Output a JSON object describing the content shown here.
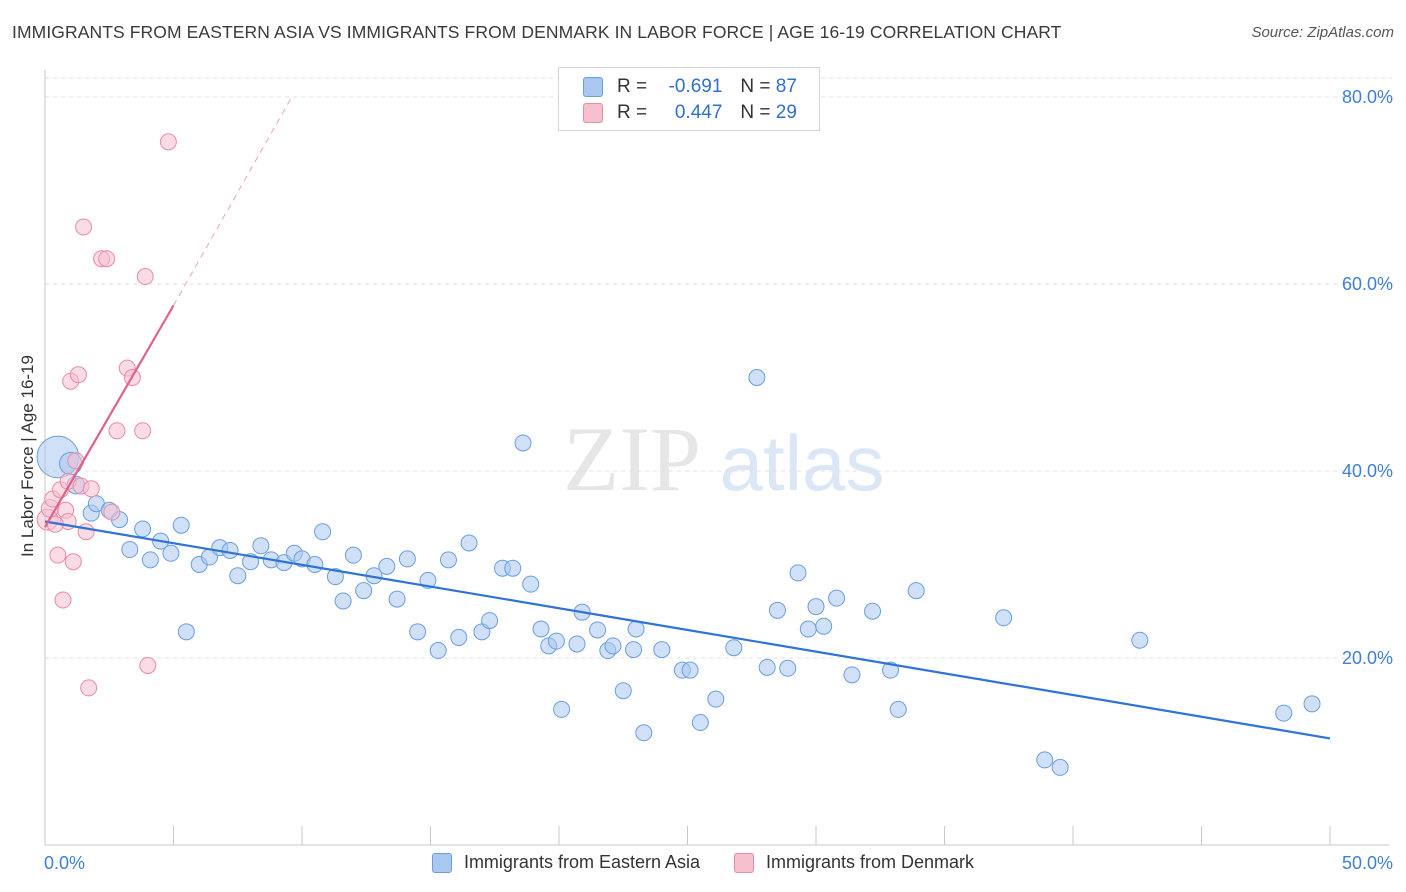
{
  "title": "IMMIGRANTS FROM EASTERN ASIA VS IMMIGRANTS FROM DENMARK IN LABOR FORCE | AGE 16-19 CORRELATION CHART",
  "source": "Source: ZipAtlas.com",
  "watermark": {
    "zip": "ZIP",
    "atlas": "atlas"
  },
  "legend": {
    "r_label": "R =",
    "n_label": "N =",
    "rows": [
      {
        "r": "-0.691",
        "n": "87",
        "color": "#a9c8f0",
        "border": "#6a9ee0"
      },
      {
        "r": "0.447",
        "n": "29",
        "color": "#f7c0cf",
        "border": "#e98aa6"
      }
    ]
  },
  "chart_data": {
    "type": "scatter",
    "xlabel": "",
    "ylabel": "In Labor Force | Age 16-19",
    "xlim": [
      0,
      50
    ],
    "ylim": [
      0,
      85
    ],
    "x_tick_labels": [
      "0.0%",
      "50.0%"
    ],
    "y_ticks": [
      20,
      40,
      60,
      80
    ],
    "y_tick_labels": [
      "20.0%",
      "40.0%",
      "60.0%",
      "80.0%"
    ],
    "grid": true,
    "legend_position": "bottom",
    "series": [
      {
        "name": "Immigrants from Eastern Asia",
        "color": "#a9c8f0",
        "stroke": "#6a9ee0",
        "trend_color": "#2f73d6",
        "trend": {
          "x0": 0.0,
          "y0": 34.6,
          "x1": 50.0,
          "y1": 11.4
        },
        "points": [
          [
            0.5,
            41.5,
            2.6
          ],
          [
            1.0,
            40.8,
            1.4
          ],
          [
            1.2,
            38.5,
            1.1
          ],
          [
            1.8,
            35.5,
            1.0
          ],
          [
            2.0,
            36.5,
            1.0
          ],
          [
            2.5,
            35.8,
            1.0
          ],
          [
            2.9,
            34.8,
            1.0
          ],
          [
            3.3,
            31.6,
            1.0
          ],
          [
            3.8,
            33.8,
            1.0
          ],
          [
            4.1,
            30.5,
            1.0
          ],
          [
            4.5,
            32.5,
            1.0
          ],
          [
            4.9,
            31.2,
            1.0
          ],
          [
            5.3,
            34.2,
            1.0
          ],
          [
            5.5,
            22.8,
            1.0
          ],
          [
            6.0,
            30.0,
            1.0
          ],
          [
            6.4,
            30.8,
            1.0
          ],
          [
            6.8,
            31.8,
            1.0
          ],
          [
            7.2,
            31.5,
            1.0
          ],
          [
            7.5,
            28.8,
            1.0
          ],
          [
            8.0,
            30.3,
            1.0
          ],
          [
            8.4,
            32.0,
            1.0
          ],
          [
            8.8,
            30.5,
            1.0
          ],
          [
            9.3,
            30.2,
            1.0
          ],
          [
            9.7,
            31.2,
            1.0
          ],
          [
            10.0,
            30.6,
            1.0
          ],
          [
            10.5,
            30.0,
            1.0
          ],
          [
            10.8,
            33.5,
            1.0
          ],
          [
            11.3,
            28.7,
            1.0
          ],
          [
            11.6,
            26.1,
            1.0
          ],
          [
            12.0,
            31.0,
            1.0
          ],
          [
            12.4,
            27.2,
            1.0
          ],
          [
            12.8,
            28.8,
            1.0
          ],
          [
            13.3,
            29.8,
            1.0
          ],
          [
            13.7,
            26.3,
            1.0
          ],
          [
            14.1,
            30.6,
            1.0
          ],
          [
            14.5,
            22.8,
            1.0
          ],
          [
            14.9,
            28.3,
            1.0
          ],
          [
            15.3,
            20.8,
            1.0
          ],
          [
            15.7,
            30.5,
            1.0
          ],
          [
            16.1,
            22.2,
            1.0
          ],
          [
            16.5,
            32.3,
            1.0
          ],
          [
            17.0,
            22.8,
            1.0
          ],
          [
            17.3,
            24.0,
            1.0
          ],
          [
            17.8,
            29.6,
            1.0
          ],
          [
            18.2,
            29.6,
            1.0
          ],
          [
            18.6,
            43.0,
            1.0
          ],
          [
            18.9,
            27.9,
            1.0
          ],
          [
            19.3,
            23.1,
            1.0
          ],
          [
            19.6,
            21.3,
            1.0
          ],
          [
            19.9,
            21.8,
            1.0
          ],
          [
            20.1,
            14.5,
            1.0
          ],
          [
            20.7,
            21.5,
            1.0
          ],
          [
            20.9,
            24.9,
            1.0
          ],
          [
            21.5,
            23.0,
            1.0
          ],
          [
            21.9,
            20.8,
            1.0
          ],
          [
            22.1,
            21.3,
            1.0
          ],
          [
            22.5,
            16.5,
            1.0
          ],
          [
            22.9,
            20.9,
            1.0
          ],
          [
            23.0,
            23.1,
            1.0
          ],
          [
            23.3,
            12.0,
            1.0
          ],
          [
            24.0,
            20.9,
            1.0
          ],
          [
            24.8,
            18.7,
            1.0
          ],
          [
            25.1,
            18.7,
            1.0
          ],
          [
            25.5,
            13.1,
            1.0
          ],
          [
            26.1,
            15.6,
            1.0
          ],
          [
            26.8,
            21.1,
            1.0
          ],
          [
            27.7,
            50.0,
            1.0
          ],
          [
            28.1,
            19.0,
            1.0
          ],
          [
            28.5,
            25.1,
            1.0
          ],
          [
            28.9,
            18.9,
            1.0
          ],
          [
            29.3,
            29.1,
            1.0
          ],
          [
            29.7,
            23.1,
            1.0
          ],
          [
            30.0,
            25.5,
            1.0
          ],
          [
            30.3,
            23.4,
            1.0
          ],
          [
            30.8,
            26.4,
            1.0
          ],
          [
            31.4,
            18.2,
            1.0
          ],
          [
            32.2,
            25.0,
            1.0
          ],
          [
            32.9,
            18.7,
            1.0
          ],
          [
            33.2,
            14.5,
            1.0
          ],
          [
            33.9,
            27.2,
            1.0
          ],
          [
            37.3,
            24.3,
            1.0
          ],
          [
            38.9,
            9.1,
            1.0
          ],
          [
            39.5,
            8.3,
            1.0
          ],
          [
            42.6,
            21.9,
            1.0
          ],
          [
            48.2,
            14.1,
            1.0
          ],
          [
            49.3,
            15.1,
            1.0
          ]
        ]
      },
      {
        "name": "Immigrants from Denmark",
        "color": "#f7c0cf",
        "stroke": "#e98aa6",
        "trend_color": "#e0628a",
        "trend": {
          "x0": 0.0,
          "y0": 34.0,
          "x1": 5.0,
          "y1": 57.7
        },
        "trend_ext": {
          "x0": 5.0,
          "y0": 57.7,
          "x1": 9.6,
          "y1": 80.0
        },
        "points": [
          [
            0.1,
            34.8,
            1.3
          ],
          [
            0.2,
            36.0,
            1.1
          ],
          [
            0.3,
            37.0,
            1.0
          ],
          [
            0.5,
            31.0,
            1.0
          ],
          [
            0.6,
            38.0,
            1.0
          ],
          [
            0.7,
            26.2,
            1.0
          ],
          [
            0.8,
            35.8,
            1.0
          ],
          [
            0.9,
            38.9,
            1.0
          ],
          [
            0.9,
            34.6,
            1.0
          ],
          [
            1.0,
            49.6,
            1.0
          ],
          [
            1.1,
            30.3,
            1.0
          ],
          [
            1.2,
            41.1,
            1.0
          ],
          [
            1.3,
            50.3,
            1.0
          ],
          [
            1.4,
            38.4,
            1.0
          ],
          [
            1.5,
            66.1,
            1.0
          ],
          [
            1.6,
            33.5,
            1.0
          ],
          [
            1.7,
            16.8,
            1.0
          ],
          [
            1.8,
            38.1,
            1.0
          ],
          [
            2.2,
            62.7,
            1.0
          ],
          [
            2.4,
            62.7,
            1.0
          ],
          [
            2.6,
            35.6,
            1.0
          ],
          [
            2.8,
            44.3,
            1.0
          ],
          [
            3.2,
            51.0,
            1.0
          ],
          [
            3.4,
            50.0,
            1.0
          ],
          [
            3.8,
            44.3,
            1.0
          ],
          [
            3.9,
            60.8,
            1.0
          ],
          [
            4.0,
            19.2,
            1.0
          ],
          [
            4.8,
            75.2,
            1.0
          ],
          [
            0.4,
            34.3,
            1.0
          ]
        ]
      }
    ]
  }
}
